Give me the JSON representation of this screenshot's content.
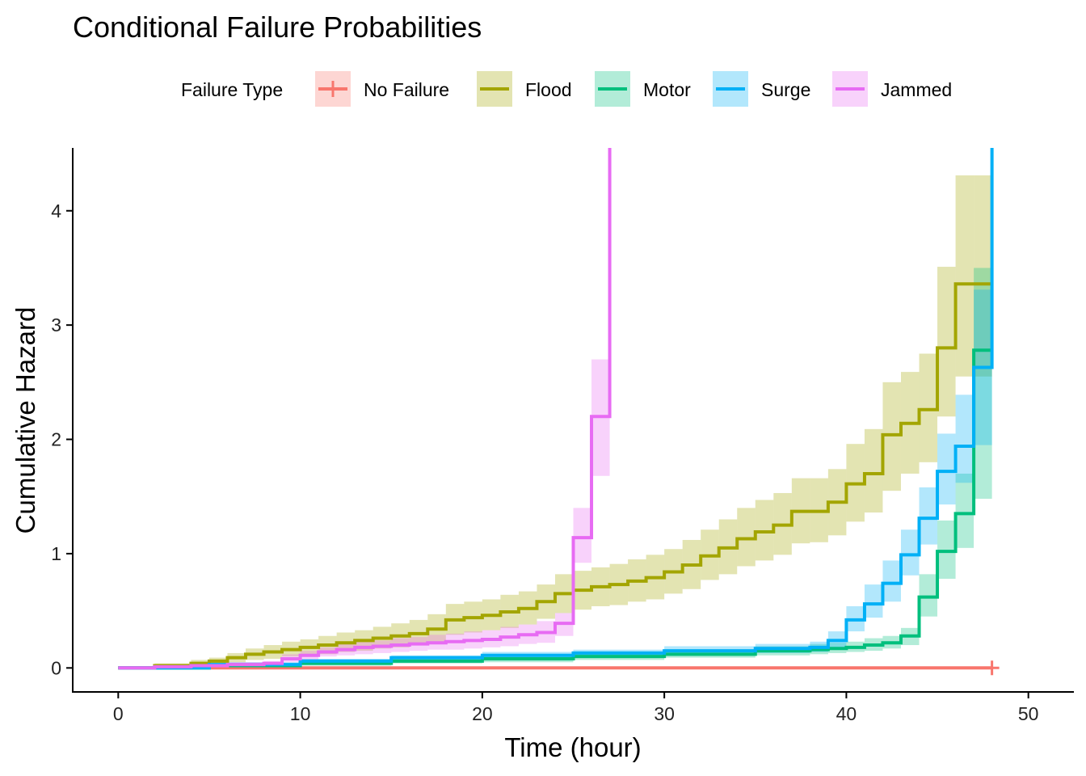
{
  "chart_data": {
    "type": "line",
    "step": true,
    "title": "Conditional Failure Probabilities",
    "xlabel": "Time (hour)",
    "ylabel": "Cumulative Hazard",
    "xlim": [
      -2.5,
      52.5
    ],
    "ylim": [
      -0.21,
      4.55
    ],
    "x_ticks": [
      0,
      10,
      20,
      30,
      40,
      50
    ],
    "y_ticks": [
      0,
      1,
      2,
      3,
      4
    ],
    "grid": false,
    "legend": {
      "title": "Failure Type",
      "position": "top"
    },
    "series": [
      {
        "name": "No Failure",
        "color": "#F8766D",
        "censor_mark": [
          48,
          0
        ],
        "x": [
          0,
          48
        ],
        "y": [
          0,
          0
        ],
        "lower": [
          0,
          0
        ],
        "upper": [
          0,
          0
        ]
      },
      {
        "name": "Flood",
        "color": "#A3A500",
        "x": [
          0,
          2,
          4,
          5,
          6,
          7,
          8,
          9,
          10,
          11,
          12,
          13,
          14,
          15,
          16,
          17,
          18,
          19,
          20,
          21,
          22,
          23,
          24,
          25,
          26,
          27,
          28,
          29,
          30,
          31,
          32,
          33,
          34,
          35,
          36,
          37,
          38,
          39,
          40,
          41,
          42,
          43,
          44,
          45,
          46,
          47,
          48
        ],
        "y": [
          0,
          0.02,
          0.04,
          0.06,
          0.09,
          0.12,
          0.14,
          0.16,
          0.18,
          0.2,
          0.22,
          0.24,
          0.26,
          0.28,
          0.3,
          0.34,
          0.42,
          0.44,
          0.46,
          0.49,
          0.52,
          0.58,
          0.65,
          0.68,
          0.71,
          0.73,
          0.76,
          0.79,
          0.84,
          0.9,
          0.98,
          1.05,
          1.13,
          1.19,
          1.25,
          1.37,
          1.37,
          1.45,
          1.61,
          1.7,
          2.04,
          2.14,
          2.26,
          2.8,
          3.36,
          3.36,
          3.36
        ],
        "lower": [
          0,
          0.01,
          0.02,
          0.03,
          0.05,
          0.07,
          0.08,
          0.1,
          0.11,
          0.12,
          0.14,
          0.15,
          0.17,
          0.18,
          0.2,
          0.23,
          0.29,
          0.31,
          0.33,
          0.35,
          0.38,
          0.43,
          0.48,
          0.51,
          0.54,
          0.55,
          0.58,
          0.6,
          0.65,
          0.69,
          0.77,
          0.82,
          0.89,
          0.94,
          0.99,
          1.09,
          1.1,
          1.16,
          1.28,
          1.36,
          1.55,
          1.7,
          1.8,
          2.2,
          2.55,
          2.55,
          2.55
        ],
        "upper": [
          0,
          0.04,
          0.07,
          0.09,
          0.13,
          0.17,
          0.2,
          0.23,
          0.25,
          0.28,
          0.31,
          0.33,
          0.36,
          0.39,
          0.42,
          0.47,
          0.56,
          0.58,
          0.6,
          0.64,
          0.67,
          0.73,
          0.82,
          0.85,
          0.88,
          0.91,
          0.95,
          0.99,
          1.04,
          1.12,
          1.21,
          1.3,
          1.4,
          1.47,
          1.53,
          1.66,
          1.66,
          1.74,
          1.96,
          2.09,
          2.5,
          2.59,
          2.75,
          3.51,
          4.31,
          4.31,
          4.31
        ]
      },
      {
        "name": "Motor",
        "color": "#00BF7D",
        "x": [
          0,
          5,
          10,
          15,
          20,
          25,
          30,
          35,
          38,
          39,
          40,
          41,
          42,
          43,
          44,
          45,
          46,
          47,
          48
        ],
        "y": [
          0,
          0.02,
          0.04,
          0.06,
          0.08,
          0.1,
          0.12,
          0.15,
          0.16,
          0.17,
          0.18,
          0.2,
          0.22,
          0.28,
          0.62,
          1.02,
          1.35,
          2.78,
          2.78
        ],
        "lower": [
          0,
          0.01,
          0.02,
          0.04,
          0.05,
          0.07,
          0.09,
          0.11,
          0.12,
          0.13,
          0.14,
          0.15,
          0.17,
          0.2,
          0.45,
          0.78,
          1.05,
          1.48,
          1.48
        ],
        "upper": [
          0,
          0.03,
          0.06,
          0.08,
          0.11,
          0.13,
          0.16,
          0.19,
          0.21,
          0.22,
          0.23,
          0.26,
          0.28,
          0.35,
          0.82,
          1.29,
          1.7,
          3.5,
          3.5
        ]
      },
      {
        "name": "Surge",
        "color": "#00B0F6",
        "x": [
          0,
          5,
          10,
          15,
          20,
          25,
          30,
          35,
          38,
          39,
          40,
          41,
          42,
          43,
          44,
          45,
          46,
          47,
          48
        ],
        "y": [
          0,
          0.03,
          0.06,
          0.09,
          0.11,
          0.13,
          0.15,
          0.17,
          0.18,
          0.24,
          0.42,
          0.56,
          0.74,
          0.99,
          1.31,
          1.72,
          1.94,
          2.63,
          4.55
        ],
        "lower": [
          0,
          0.02,
          0.04,
          0.06,
          0.08,
          0.1,
          0.11,
          0.13,
          0.14,
          0.18,
          0.32,
          0.44,
          0.58,
          0.81,
          1.08,
          1.43,
          1.62,
          1.95,
          1.95
        ],
        "upper": [
          0,
          0.05,
          0.08,
          0.11,
          0.14,
          0.16,
          0.19,
          0.21,
          0.23,
          0.32,
          0.54,
          0.73,
          0.94,
          1.21,
          1.58,
          2.05,
          2.39,
          3.31,
          3.31
        ]
      },
      {
        "name": "Jammed",
        "color": "#E76BF3",
        "x": [
          0,
          2,
          4,
          6,
          8,
          9,
          10,
          11,
          12,
          13,
          14,
          15,
          16,
          17,
          18,
          19,
          20,
          21,
          22,
          23,
          24,
          25,
          26,
          27
        ],
        "y": [
          0,
          0.01,
          0.02,
          0.03,
          0.04,
          0.08,
          0.11,
          0.14,
          0.16,
          0.18,
          0.19,
          0.2,
          0.21,
          0.22,
          0.23,
          0.24,
          0.25,
          0.27,
          0.29,
          0.31,
          0.39,
          1.14,
          2.2,
          4.55
        ],
        "lower": [
          0,
          0.0,
          0.01,
          0.02,
          0.02,
          0.05,
          0.07,
          0.1,
          0.11,
          0.12,
          0.13,
          0.14,
          0.15,
          0.16,
          0.16,
          0.17,
          0.18,
          0.19,
          0.21,
          0.22,
          0.28,
          0.92,
          1.68,
          1.68
        ],
        "upper": [
          0,
          0.02,
          0.03,
          0.05,
          0.06,
          0.12,
          0.15,
          0.18,
          0.21,
          0.23,
          0.24,
          0.26,
          0.27,
          0.29,
          0.3,
          0.32,
          0.33,
          0.36,
          0.38,
          0.41,
          0.48,
          1.4,
          2.7,
          2.7
        ]
      }
    ]
  }
}
